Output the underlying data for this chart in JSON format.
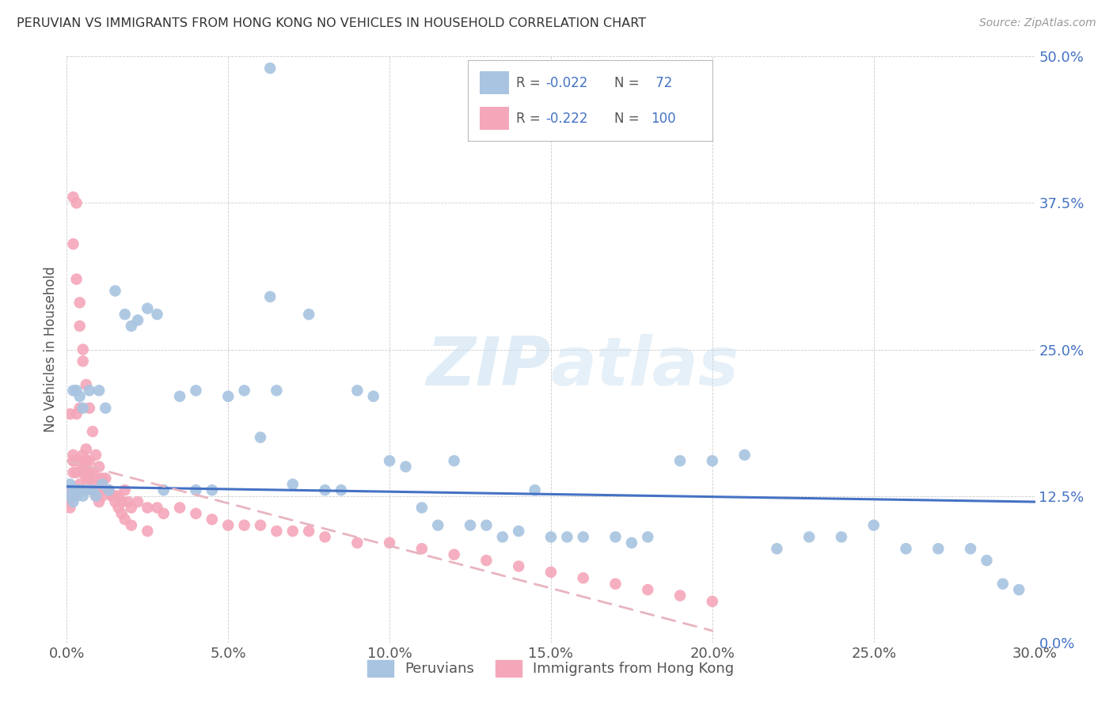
{
  "title": "PERUVIAN VS IMMIGRANTS FROM HONG KONG NO VEHICLES IN HOUSEHOLD CORRELATION CHART",
  "source": "Source: ZipAtlas.com",
  "xlim": [
    0.0,
    0.3
  ],
  "ylim": [
    0.0,
    0.5
  ],
  "color_blue": "#a8c4e0",
  "color_pink": "#f4a7b9",
  "color_line_blue": "#4472c4",
  "color_line_pink": "#e8b4c0",
  "watermark_zip": "ZIP",
  "watermark_atlas": "atlas",
  "ylabel": "No Vehicles in Household",
  "legend_label1": "Peruvians",
  "legend_label2": "Immigrants from Hong Kong",
  "peru_x": [
    0.001,
    0.001,
    0.002,
    0.002,
    0.002,
    0.003,
    0.003,
    0.003,
    0.004,
    0.004,
    0.005,
    0.005,
    0.006,
    0.007,
    0.008,
    0.009,
    0.01,
    0.011,
    0.012,
    0.013,
    0.015,
    0.018,
    0.02,
    0.022,
    0.025,
    0.028,
    0.03,
    0.035,
    0.04,
    0.045,
    0.05,
    0.055,
    0.06,
    0.063,
    0.065,
    0.07,
    0.075,
    0.08,
    0.085,
    0.09,
    0.095,
    0.1,
    0.105,
    0.11,
    0.115,
    0.12,
    0.125,
    0.13,
    0.135,
    0.14,
    0.145,
    0.15,
    0.155,
    0.16,
    0.17,
    0.175,
    0.18,
    0.19,
    0.2,
    0.21,
    0.22,
    0.23,
    0.24,
    0.25,
    0.26,
    0.27,
    0.28,
    0.285,
    0.29,
    0.295,
    0.063,
    0.04
  ],
  "peru_y": [
    0.125,
    0.135,
    0.12,
    0.13,
    0.215,
    0.125,
    0.13,
    0.215,
    0.13,
    0.21,
    0.125,
    0.2,
    0.13,
    0.215,
    0.13,
    0.125,
    0.215,
    0.135,
    0.2,
    0.13,
    0.3,
    0.28,
    0.27,
    0.275,
    0.285,
    0.28,
    0.13,
    0.21,
    0.215,
    0.13,
    0.21,
    0.215,
    0.175,
    0.295,
    0.215,
    0.135,
    0.28,
    0.13,
    0.13,
    0.215,
    0.21,
    0.155,
    0.15,
    0.115,
    0.1,
    0.155,
    0.1,
    0.1,
    0.09,
    0.095,
    0.13,
    0.09,
    0.09,
    0.09,
    0.09,
    0.085,
    0.09,
    0.155,
    0.155,
    0.16,
    0.08,
    0.09,
    0.09,
    0.1,
    0.08,
    0.08,
    0.08,
    0.07,
    0.05,
    0.045,
    0.49,
    0.13
  ],
  "hk_x": [
    0.001,
    0.001,
    0.001,
    0.001,
    0.001,
    0.002,
    0.002,
    0.002,
    0.002,
    0.002,
    0.002,
    0.003,
    0.003,
    0.003,
    0.003,
    0.003,
    0.003,
    0.004,
    0.004,
    0.004,
    0.004,
    0.005,
    0.005,
    0.005,
    0.005,
    0.005,
    0.006,
    0.006,
    0.006,
    0.006,
    0.007,
    0.007,
    0.007,
    0.008,
    0.008,
    0.008,
    0.009,
    0.009,
    0.01,
    0.01,
    0.011,
    0.011,
    0.012,
    0.013,
    0.014,
    0.015,
    0.016,
    0.017,
    0.018,
    0.019,
    0.02,
    0.022,
    0.025,
    0.028,
    0.03,
    0.035,
    0.04,
    0.045,
    0.05,
    0.055,
    0.06,
    0.065,
    0.07,
    0.075,
    0.08,
    0.09,
    0.1,
    0.11,
    0.12,
    0.13,
    0.14,
    0.15,
    0.16,
    0.17,
    0.18,
    0.19,
    0.2,
    0.002,
    0.002,
    0.003,
    0.003,
    0.004,
    0.004,
    0.005,
    0.005,
    0.006,
    0.007,
    0.008,
    0.009,
    0.01,
    0.011,
    0.012,
    0.013,
    0.014,
    0.015,
    0.016,
    0.017,
    0.018,
    0.02,
    0.025
  ],
  "hk_y": [
    0.125,
    0.13,
    0.12,
    0.115,
    0.195,
    0.125,
    0.155,
    0.13,
    0.145,
    0.155,
    0.16,
    0.13,
    0.145,
    0.13,
    0.125,
    0.155,
    0.195,
    0.135,
    0.13,
    0.155,
    0.2,
    0.16,
    0.15,
    0.145,
    0.13,
    0.155,
    0.165,
    0.155,
    0.15,
    0.14,
    0.155,
    0.145,
    0.14,
    0.145,
    0.135,
    0.13,
    0.13,
    0.125,
    0.14,
    0.12,
    0.13,
    0.125,
    0.13,
    0.13,
    0.125,
    0.125,
    0.125,
    0.12,
    0.13,
    0.12,
    0.115,
    0.12,
    0.115,
    0.115,
    0.11,
    0.115,
    0.11,
    0.105,
    0.1,
    0.1,
    0.1,
    0.095,
    0.095,
    0.095,
    0.09,
    0.085,
    0.085,
    0.08,
    0.075,
    0.07,
    0.065,
    0.06,
    0.055,
    0.05,
    0.045,
    0.04,
    0.035,
    0.38,
    0.34,
    0.375,
    0.31,
    0.29,
    0.27,
    0.25,
    0.24,
    0.22,
    0.2,
    0.18,
    0.16,
    0.15,
    0.14,
    0.14,
    0.13,
    0.125,
    0.12,
    0.115,
    0.11,
    0.105,
    0.1,
    0.095
  ],
  "blue_line_x": [
    0.0,
    0.3
  ],
  "blue_line_y": [
    0.133,
    0.12
  ],
  "pink_line_x": [
    0.0,
    0.2
  ],
  "pink_line_y": [
    0.155,
    0.01
  ]
}
